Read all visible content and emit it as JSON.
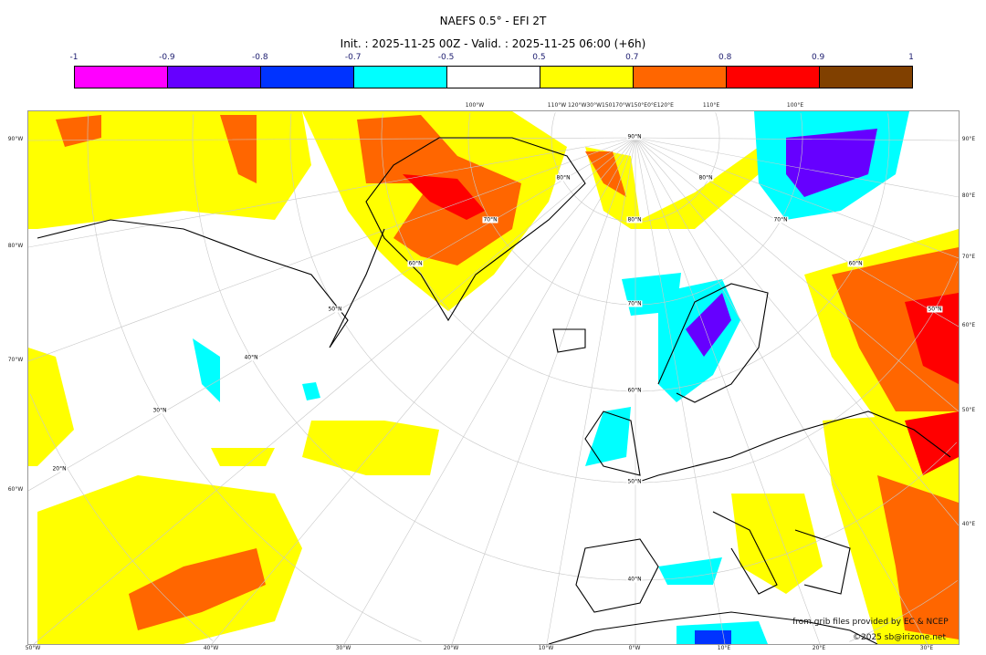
{
  "title": "NAEFS 0.5° - EFI 2T",
  "subtitle": "Init. : 2025-11-25 00Z - Valid. : 2025-11-25 06:00 (+6h)",
  "colorbar": {
    "ticks": [
      "-1",
      "-0.9",
      "-0.8",
      "-0.7",
      "-0.5",
      "0.5",
      "0.7",
      "0.8",
      "0.9",
      "1"
    ],
    "colors": [
      "#ff00ff",
      "#6600ff",
      "#0033ff",
      "#00ffff",
      "#ffffff",
      "#ffff00",
      "#ff6600",
      "#ff0000",
      "#804000"
    ]
  },
  "map": {
    "left_labels": [
      "90°W",
      "80°W",
      "70°W",
      "60°W"
    ],
    "right_labels": [
      "90°E",
      "80°E",
      "70°E",
      "60°E",
      "50°E",
      "40°E"
    ],
    "bottom_labels": [
      "50°W",
      "40°W",
      "30°W",
      "20°W",
      "10°W",
      "0°W",
      "10°E",
      "20°E",
      "30°E"
    ],
    "top_labels": [
      "100°W",
      "110°W",
      "120°W30°W150170°W150°E0°E120°E",
      "110°E",
      "100°E"
    ],
    "grid_labels": [
      "90°N",
      "80°N",
      "70°N",
      "60°N",
      "50°N",
      "40°N",
      "80°N",
      "70°N",
      "60°N",
      "50°N",
      "40°N",
      "30°N",
      "20°N",
      "80°N",
      "70°N",
      "60°N",
      "50°N"
    ]
  },
  "credits": {
    "source": "from grib files provided by EC & NCEP",
    "copyright": "©2025 sb@irizone.net"
  }
}
